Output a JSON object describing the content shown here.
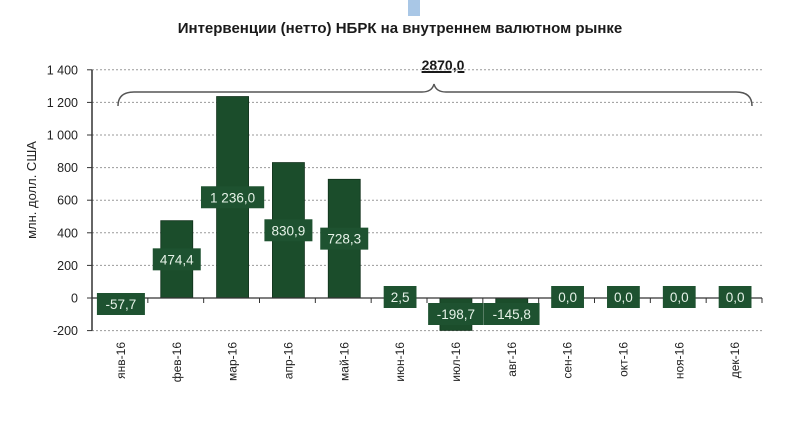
{
  "chart_data": {
    "type": "bar",
    "title": "Интервенции (нетто) НБРК на внутреннем валютном рынке",
    "xlabel": "",
    "ylabel": "млн. долл. США",
    "ylim": [
      -200,
      1400
    ],
    "yticks": [
      "1 400",
      "1 200",
      "1 000",
      "800",
      "600",
      "400",
      "200",
      "0",
      "-200"
    ],
    "grid": true,
    "legend": null,
    "categories": [
      "янв-16",
      "фев-16",
      "мар-16",
      "апр-16",
      "май-16",
      "июн-16",
      "июл-16",
      "авг-16",
      "сен-16",
      "окт-16",
      "ноя-16",
      "дек-16"
    ],
    "values": [
      -57.7,
      474.4,
      1236.0,
      830.9,
      728.3,
      2.5,
      -198.7,
      -145.8,
      0.0,
      0.0,
      0.0,
      0.0
    ],
    "data_labels": [
      "-57,7",
      "474,4",
      "1 236,0",
      "830,9",
      "728,3",
      "2,5",
      "-198,7",
      "-145,8",
      "0,0",
      "0,0",
      "0,0",
      "0,0"
    ],
    "annotation": {
      "text": "2870,0",
      "type": "brace",
      "spans": "янв-16 — дек-16"
    },
    "bar_color": "#1b4d2b",
    "label_box_color": "#1e5230",
    "label_text_color": "#e6f2e8"
  }
}
